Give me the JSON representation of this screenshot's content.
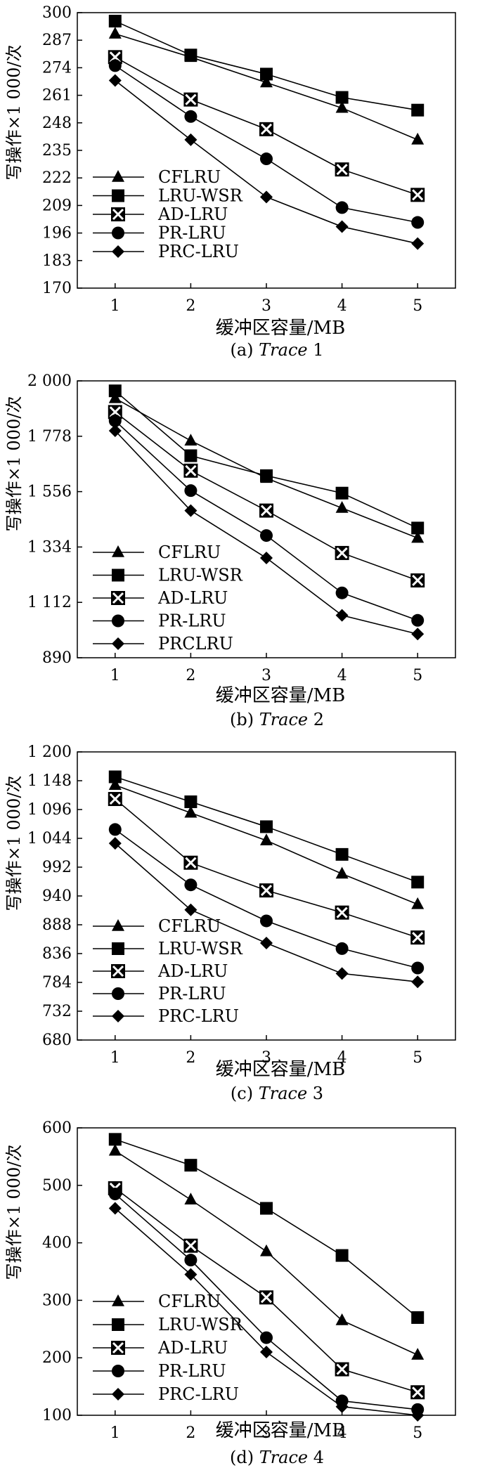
{
  "chart_data": [
    {
      "type": "line",
      "x": [
        1,
        2,
        3,
        4,
        5
      ],
      "xlabel": "缓冲区容量/MB",
      "ylabel": "写操作×1 000/次",
      "ylim": [
        170,
        300
      ],
      "yticks": [
        "170",
        "183",
        "196",
        "209",
        "222",
        "235",
        "248",
        "261",
        "274",
        "287",
        "300"
      ],
      "caption_prefix": "(a)",
      "caption_italic": "Trace",
      "caption_suffix": "1",
      "legend_position": "bottom-left",
      "series": [
        {
          "name": "CFLRU",
          "marker": "triangle",
          "values": [
            290,
            279,
            267,
            255,
            240
          ]
        },
        {
          "name": "LRU-WSR",
          "marker": "square",
          "values": [
            296,
            280,
            271,
            260,
            254
          ]
        },
        {
          "name": "AD-LRU",
          "marker": "xsquare",
          "values": [
            279,
            259,
            245,
            226,
            214
          ]
        },
        {
          "name": "PR-LRU",
          "marker": "circle",
          "values": [
            275,
            251,
            231,
            208,
            201
          ]
        },
        {
          "name": "PRC-LRU",
          "marker": "diamond",
          "values": [
            268,
            240,
            213,
            199,
            191
          ]
        }
      ]
    },
    {
      "type": "line",
      "x": [
        1,
        2,
        3,
        4,
        5
      ],
      "xlabel": "缓冲区容量/MB",
      "ylabel": "写操作×1 000/次",
      "ylim": [
        890,
        2000
      ],
      "yticks": [
        "890",
        "1 112",
        "1 334",
        "1 556",
        "1 778",
        "2 000"
      ],
      "caption_prefix": "(b)",
      "caption_italic": "Trace",
      "caption_suffix": "2",
      "legend_position": "bottom-left",
      "series": [
        {
          "name": "CFLRU",
          "marker": "triangle",
          "values": [
            1930,
            1760,
            1610,
            1490,
            1370
          ]
        },
        {
          "name": "LRU-WSR",
          "marker": "square",
          "values": [
            1960,
            1700,
            1620,
            1550,
            1410
          ]
        },
        {
          "name": "AD-LRU",
          "marker": "xsquare",
          "values": [
            1875,
            1640,
            1480,
            1310,
            1200
          ]
        },
        {
          "name": "PR-LRU",
          "marker": "circle",
          "values": [
            1840,
            1560,
            1380,
            1150,
            1040
          ]
        },
        {
          "name": "PRCLRU",
          "marker": "diamond",
          "values": [
            1800,
            1480,
            1290,
            1060,
            985
          ]
        }
      ]
    },
    {
      "type": "line",
      "x": [
        1,
        2,
        3,
        4,
        5
      ],
      "xlabel": "缓冲区容量/MB",
      "ylabel": "写操作×1 000/次",
      "ylim": [
        680,
        1200
      ],
      "yticks": [
        "680",
        "732",
        "784",
        "836",
        "888",
        "940",
        "992",
        "1 044",
        "1 096",
        "1 148",
        "1 200"
      ],
      "caption_prefix": "(c)",
      "caption_italic": "Trace",
      "caption_suffix": "3",
      "legend_position": "bottom-left",
      "series": [
        {
          "name": "CFLRU",
          "marker": "triangle",
          "values": [
            1140,
            1090,
            1040,
            980,
            925
          ]
        },
        {
          "name": "LRU-WSR",
          "marker": "square",
          "values": [
            1155,
            1110,
            1065,
            1015,
            965
          ]
        },
        {
          "name": "AD-LRU",
          "marker": "xsquare",
          "values": [
            1115,
            1000,
            950,
            910,
            865
          ]
        },
        {
          "name": "PR-LRU",
          "marker": "circle",
          "values": [
            1060,
            960,
            895,
            845,
            810
          ]
        },
        {
          "name": "PRC-LRU",
          "marker": "diamond",
          "values": [
            1035,
            915,
            855,
            800,
            785
          ]
        }
      ]
    },
    {
      "type": "line",
      "x": [
        1,
        2,
        3,
        4,
        5
      ],
      "xlabel": "缓冲区容量/MB",
      "ylabel": "写操作×1 000/次",
      "ylim": [
        100,
        600
      ],
      "yticks": [
        "100",
        "200",
        "300",
        "400",
        "500",
        "600"
      ],
      "caption_prefix": "(d)",
      "caption_italic": "Trace",
      "caption_suffix": "4",
      "legend_position": "bottom-left",
      "series": [
        {
          "name": "CFLRU",
          "marker": "triangle",
          "values": [
            560,
            475,
            385,
            265,
            205
          ]
        },
        {
          "name": "LRU-WSR",
          "marker": "square",
          "values": [
            580,
            535,
            460,
            378,
            270
          ]
        },
        {
          "name": "AD-LRU",
          "marker": "xsquare",
          "values": [
            495,
            395,
            305,
            180,
            140
          ]
        },
        {
          "name": "PR-LRU",
          "marker": "circle",
          "values": [
            485,
            370,
            235,
            125,
            110
          ]
        },
        {
          "name": "PRC-LRU",
          "marker": "diamond",
          "values": [
            460,
            345,
            210,
            115,
            100
          ]
        }
      ]
    }
  ]
}
